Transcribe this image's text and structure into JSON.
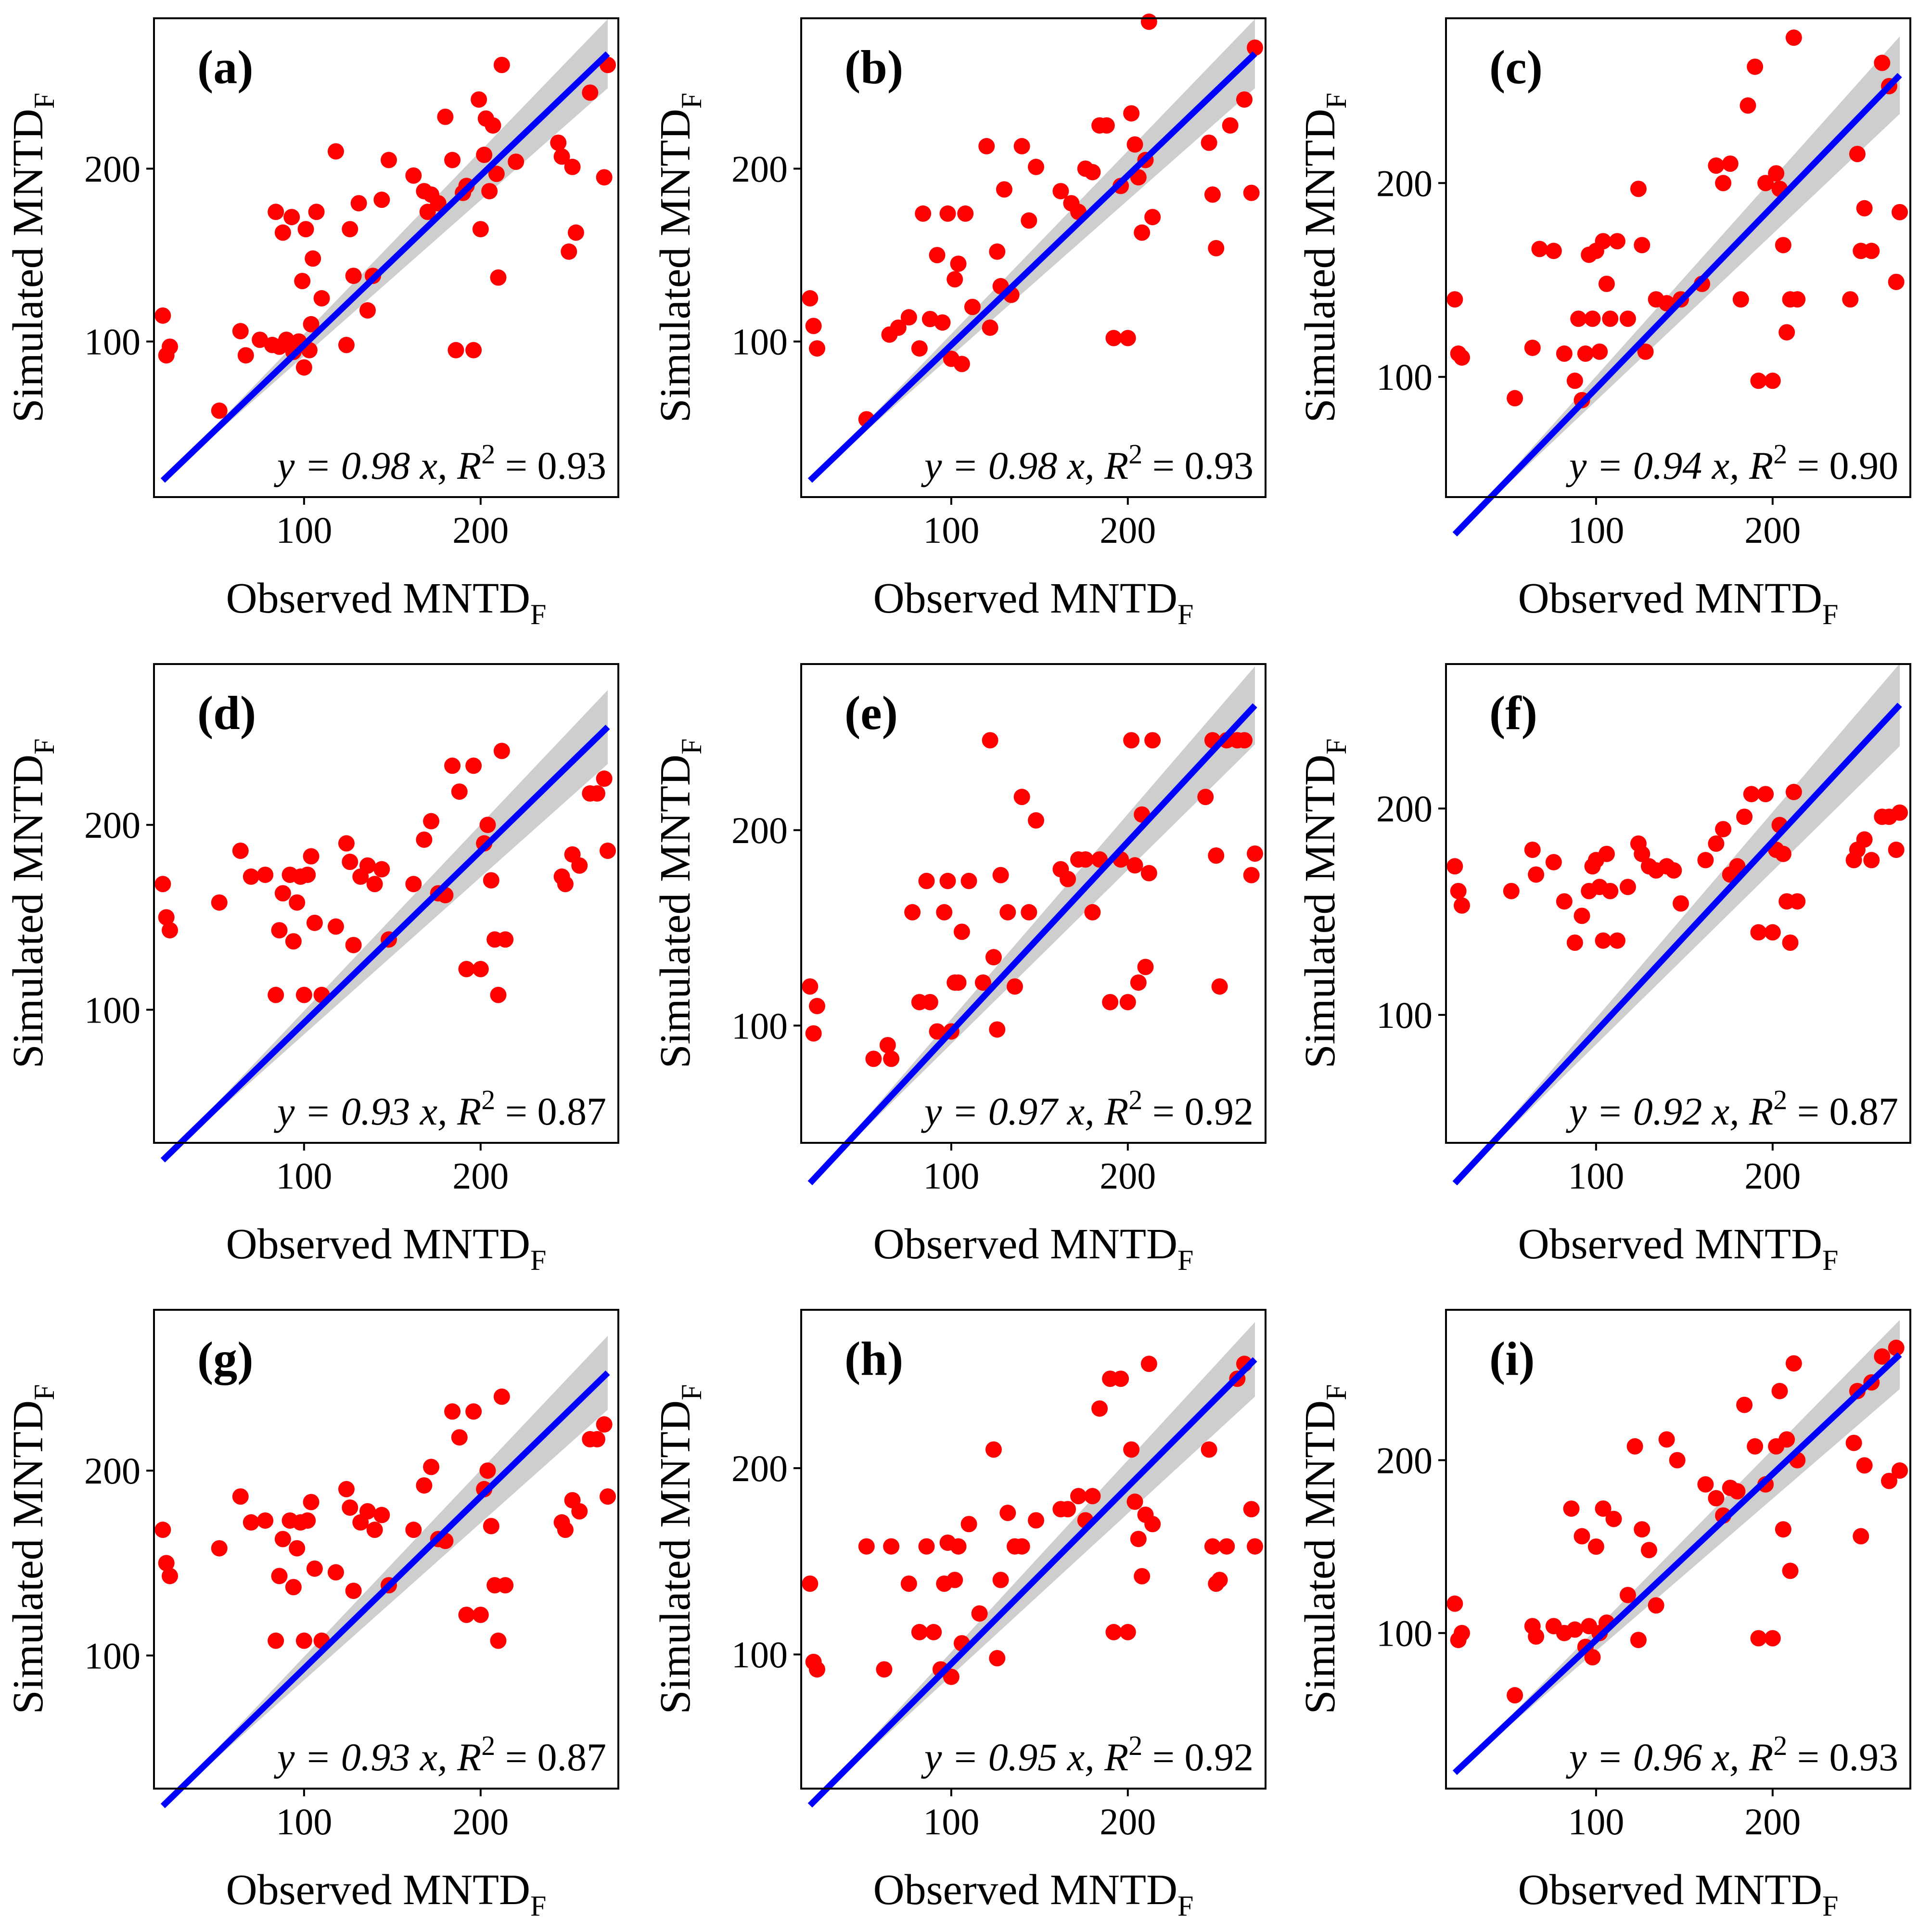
{
  "figure": {
    "colors": {
      "points": "#ff0000",
      "fit_line": "#0000ff",
      "ci_band": "#bdbdbd",
      "axes": "#000000",
      "background": "#ffffff"
    }
  },
  "chart_data": [
    {
      "panel": "(a)",
      "type": "scatter",
      "xlabel": "Observed MNTD",
      "xlabel_sub": "F",
      "ylabel": "Simulated MNTD",
      "ylabel_sub": "F",
      "xticks": [
        "100",
        "200"
      ],
      "yticks": [
        "100",
        "200"
      ],
      "xlim": [
        15,
        278
      ],
      "ylim": [
        10,
        287
      ],
      "fit": {
        "slope": 0.98,
        "r2": 0.93,
        "x_range": [
          20,
          272
        ]
      },
      "eq_prefix": "y = 0.98 x, ",
      "eq_r": "R",
      "eq_sup": "2",
      "eq_suffix": " = 0.93",
      "x": [
        20,
        22,
        24,
        52,
        64,
        67,
        75,
        82,
        84,
        86,
        88,
        90,
        93,
        94,
        97,
        99,
        100,
        101,
        103,
        104,
        105,
        107,
        110,
        118,
        124,
        126,
        128,
        131,
        136,
        139,
        144,
        148,
        162,
        168,
        170,
        172,
        176,
        180,
        184,
        186,
        190,
        192,
        196,
        199,
        200,
        202,
        203,
        205,
        207,
        209,
        210,
        212,
        220,
        244,
        246,
        250,
        252,
        254,
        262,
        270,
        272
      ],
      "y": [
        115,
        92,
        97,
        60,
        106,
        92,
        101,
        98,
        175,
        97,
        163,
        101,
        172,
        94,
        100,
        135,
        85,
        165,
        95,
        110,
        148,
        175,
        125,
        210,
        98,
        165,
        138,
        180,
        118,
        138,
        182,
        205,
        196,
        187,
        175,
        185,
        180,
        230,
        205,
        95,
        186,
        190,
        95,
        240,
        165,
        208,
        229,
        187,
        225,
        197,
        137,
        260,
        204,
        215,
        207,
        152,
        201,
        163,
        244,
        195,
        260
      ]
    },
    {
      "panel": "(b)",
      "type": "scatter",
      "xlabel": "Observed MNTD",
      "xlabel_sub": "F",
      "ylabel": "Simulated MNTD",
      "ylabel_sub": "F",
      "xticks": [
        "100",
        "200"
      ],
      "yticks": [
        "100",
        "200"
      ],
      "xlim": [
        15,
        278
      ],
      "ylim": [
        10,
        287
      ],
      "fit": {
        "slope": 0.98,
        "r2": 0.93,
        "x_range": [
          20,
          272
        ]
      },
      "eq_prefix": "y = 0.98 x, ",
      "eq_r": "R",
      "eq_sup": "2",
      "eq_suffix": " = 0.93",
      "x": [
        20,
        22,
        24,
        52,
        65,
        70,
        76,
        82,
        84,
        88,
        92,
        95,
        98,
        100,
        102,
        104,
        106,
        108,
        112,
        120,
        122,
        126,
        128,
        130,
        134,
        140,
        144,
        148,
        162,
        168,
        172,
        176,
        180,
        184,
        188,
        192,
        196,
        200,
        202,
        204,
        206,
        208,
        210,
        212,
        214,
        246,
        248,
        250,
        258,
        266,
        270,
        272
      ],
      "y": [
        125,
        109,
        96,
        55,
        104,
        108,
        114,
        96,
        174,
        113,
        150,
        111,
        174,
        90,
        136,
        145,
        87,
        174,
        120,
        213,
        108,
        152,
        132,
        188,
        127,
        213,
        170,
        201,
        187,
        180,
        175,
        200,
        198,
        225,
        225,
        102,
        190,
        102,
        232,
        214,
        195,
        163,
        205,
        285,
        172,
        215,
        185,
        154,
        225,
        240,
        186,
        270
      ]
    },
    {
      "panel": "(c)",
      "type": "scatter",
      "xlabel": "Observed MNTD",
      "xlabel_sub": "F",
      "ylabel": "Simulated MNTD",
      "ylabel_sub": "F",
      "xticks": [
        "100",
        "200"
      ],
      "yticks": [
        "100",
        "200"
      ],
      "xlim": [
        15,
        278
      ],
      "ylim": [
        38,
        285
      ],
      "fit": {
        "slope": 0.94,
        "r2": 0.9,
        "x_range": [
          20,
          272
        ]
      },
      "eq_prefix": "y = 0.94 x, ",
      "eq_r": "R",
      "eq_sup": "2",
      "eq_suffix": " = 0.90",
      "x": [
        20,
        22,
        24,
        54,
        64,
        68,
        76,
        82,
        88,
        90,
        92,
        94,
        96,
        98,
        100,
        102,
        104,
        106,
        108,
        112,
        118,
        124,
        126,
        128,
        134,
        140,
        148,
        160,
        168,
        172,
        176,
        182,
        186,
        190,
        192,
        196,
        200,
        202,
        204,
        206,
        208,
        210,
        212,
        214,
        244,
        248,
        250,
        252,
        256,
        262,
        266,
        270,
        272
      ],
      "y": [
        140,
        112,
        110,
        89,
        115,
        166,
        165,
        112,
        98,
        130,
        88,
        112,
        163,
        130,
        165,
        113,
        170,
        148,
        130,
        170,
        130,
        197,
        168,
        113,
        140,
        138,
        140,
        148,
        209,
        200,
        210,
        140,
        240,
        260,
        98,
        200,
        98,
        205,
        197,
        168,
        123,
        140,
        275,
        140,
        140,
        215,
        165,
        187,
        165,
        262,
        250,
        149,
        185
      ]
    },
    {
      "panel": "(d)",
      "type": "scatter",
      "xlabel": "Observed MNTD",
      "xlabel_sub": "F",
      "ylabel": "Simulated MNTD",
      "ylabel_sub": "F",
      "xticks": [
        "100",
        "200"
      ],
      "yticks": [
        "100",
        "200"
      ],
      "xlim": [
        15,
        278
      ],
      "ylim": [
        28,
        287
      ],
      "fit": {
        "slope": 0.93,
        "r2": 0.87,
        "x_range": [
          20,
          272
        ]
      },
      "eq_prefix": "y = 0.93 x, ",
      "eq_r": "R",
      "eq_sup": "2",
      "eq_suffix": " = 0.87",
      "x": [
        20,
        22,
        24,
        52,
        64,
        70,
        78,
        84,
        86,
        88,
        92,
        94,
        96,
        98,
        100,
        102,
        104,
        106,
        110,
        118,
        124,
        126,
        128,
        132,
        136,
        140,
        144,
        148,
        162,
        168,
        172,
        176,
        180,
        184,
        188,
        192,
        196,
        200,
        202,
        204,
        206,
        208,
        210,
        212,
        214,
        246,
        248,
        252,
        256,
        262,
        266,
        270,
        272
      ],
      "y": [
        168,
        150,
        143,
        158,
        186,
        172,
        173,
        108,
        143,
        163,
        173,
        137,
        158,
        172,
        108,
        173,
        183,
        147,
        108,
        145,
        190,
        180,
        135,
        172,
        178,
        168,
        176,
        138,
        168,
        192,
        202,
        163,
        162,
        232,
        218,
        122,
        232,
        122,
        190,
        200,
        170,
        138,
        108,
        240,
        138,
        172,
        168,
        184,
        178,
        217,
        217,
        225,
        186
      ]
    },
    {
      "panel": "(e)",
      "type": "scatter",
      "xlabel": "Observed MNTD",
      "xlabel_sub": "F",
      "ylabel": "Simulated MNTD",
      "ylabel_sub": "F",
      "xticks": [
        "100",
        "200"
      ],
      "yticks": [
        "100",
        "200"
      ],
      "xlim": [
        15,
        278
      ],
      "ylim": [
        40,
        285
      ],
      "fit": {
        "slope": 0.97,
        "r2": 0.92,
        "x_range": [
          20,
          272
        ]
      },
      "eq_prefix": "y = 0.97 x, ",
      "eq_r": "R",
      "eq_sup": "2",
      "eq_suffix": " = 0.92",
      "x": [
        20,
        22,
        24,
        56,
        64,
        66,
        78,
        82,
        86,
        88,
        92,
        96,
        98,
        100,
        102,
        104,
        106,
        110,
        118,
        122,
        124,
        126,
        128,
        132,
        136,
        140,
        144,
        148,
        162,
        166,
        172,
        176,
        180,
        184,
        190,
        196,
        200,
        202,
        204,
        206,
        208,
        210,
        212,
        214,
        244,
        248,
        250,
        252,
        256,
        262,
        266,
        270,
        272
      ],
      "y": [
        120,
        96,
        110,
        83,
        90,
        83,
        158,
        112,
        174,
        112,
        97,
        158,
        174,
        97,
        122,
        122,
        148,
        174,
        122,
        246,
        135,
        98,
        177,
        158,
        120,
        217,
        158,
        205,
        180,
        175,
        185,
        185,
        158,
        185,
        112,
        185,
        112,
        246,
        182,
        122,
        208,
        130,
        178,
        246,
        217,
        246,
        187,
        120,
        246,
        246,
        246,
        177,
        188
      ]
    },
    {
      "panel": "(f)",
      "type": "scatter",
      "xlabel": "Observed MNTD",
      "xlabel_sub": "F",
      "ylabel": "Simulated MNTD",
      "ylabel_sub": "F",
      "xticks": [
        "100",
        "200"
      ],
      "yticks": [
        "100",
        "200"
      ],
      "xlim": [
        15,
        278
      ],
      "ylim": [
        38,
        270
      ],
      "fit": {
        "slope": 0.92,
        "r2": 0.87,
        "x_range": [
          20,
          272
        ]
      },
      "eq_prefix": "y = 0.92 x, ",
      "eq_r": "R",
      "eq_sup": "2",
      "eq_suffix": " = 0.87",
      "x": [
        20,
        22,
        24,
        52,
        64,
        66,
        76,
        82,
        88,
        92,
        96,
        98,
        100,
        102,
        104,
        106,
        108,
        112,
        118,
        124,
        126,
        130,
        134,
        140,
        144,
        148,
        162,
        168,
        172,
        176,
        180,
        184,
        188,
        192,
        196,
        200,
        202,
        204,
        206,
        208,
        210,
        212,
        214,
        246,
        248,
        252,
        256,
        262,
        266,
        270,
        272
      ],
      "y": [
        172,
        160,
        153,
        160,
        180,
        168,
        174,
        155,
        135,
        148,
        160,
        172,
        175,
        162,
        136,
        178,
        160,
        136,
        162,
        183,
        178,
        172,
        170,
        172,
        170,
        154,
        175,
        183,
        190,
        168,
        172,
        196,
        207,
        140,
        207,
        140,
        180,
        192,
        178,
        155,
        135,
        208,
        155,
        175,
        180,
        185,
        175,
        196,
        196,
        180,
        198
      ]
    },
    {
      "panel": "(g)",
      "type": "scatter",
      "xlabel": "Observed MNTD",
      "xlabel_sub": "F",
      "ylabel": "Simulated MNTD",
      "ylabel_sub": "F",
      "xticks": [
        "100",
        "200"
      ],
      "yticks": [
        "100",
        "200"
      ],
      "xlim": [
        15,
        278
      ],
      "ylim": [
        28,
        287
      ],
      "fit": {
        "slope": 0.93,
        "r2": 0.87,
        "x_range": [
          20,
          272
        ]
      },
      "eq_prefix": "y = 0.93 x, ",
      "eq_r": "R",
      "eq_sup": "2",
      "eq_suffix": " = 0.87",
      "x": [
        20,
        22,
        24,
        52,
        64,
        70,
        78,
        84,
        86,
        88,
        92,
        94,
        96,
        98,
        100,
        102,
        104,
        106,
        110,
        118,
        124,
        126,
        128,
        132,
        136,
        140,
        144,
        148,
        162,
        168,
        172,
        176,
        180,
        184,
        188,
        192,
        196,
        200,
        202,
        204,
        206,
        208,
        210,
        212,
        214,
        246,
        248,
        252,
        256,
        262,
        266,
        270,
        272
      ],
      "y": [
        168,
        150,
        143,
        158,
        186,
        172,
        173,
        108,
        143,
        163,
        173,
        137,
        158,
        172,
        108,
        173,
        183,
        147,
        108,
        145,
        190,
        180,
        135,
        172,
        178,
        168,
        176,
        138,
        168,
        192,
        202,
        163,
        162,
        232,
        218,
        122,
        232,
        122,
        190,
        200,
        170,
        138,
        108,
        240,
        138,
        172,
        168,
        184,
        178,
        217,
        217,
        225,
        186
      ]
    },
    {
      "panel": "(h)",
      "type": "scatter",
      "xlabel": "Observed MNTD",
      "xlabel_sub": "F",
      "ylabel": "Simulated MNTD",
      "ylabel_sub": "F",
      "xticks": [
        "100",
        "200"
      ],
      "yticks": [
        "100",
        "200"
      ],
      "xlim": [
        15,
        278
      ],
      "ylim": [
        28,
        285
      ],
      "fit": {
        "slope": 0.95,
        "r2": 0.92,
        "x_range": [
          20,
          272
        ]
      },
      "eq_prefix": "y = 0.95 x, ",
      "eq_r": "R",
      "eq_sup": "2",
      "eq_suffix": " = 0.92",
      "x": [
        20,
        22,
        24,
        52,
        62,
        66,
        76,
        82,
        86,
        90,
        94,
        96,
        98,
        100,
        102,
        104,
        106,
        110,
        116,
        124,
        126,
        128,
        132,
        136,
        140,
        148,
        162,
        166,
        172,
        176,
        180,
        184,
        190,
        192,
        196,
        200,
        202,
        204,
        206,
        208,
        210,
        212,
        214,
        246,
        248,
        250,
        252,
        256,
        262,
        266,
        270,
        272
      ],
      "y": [
        138,
        96,
        92,
        158,
        92,
        158,
        138,
        112,
        158,
        112,
        92,
        138,
        160,
        88,
        140,
        158,
        106,
        170,
        122,
        210,
        98,
        140,
        176,
        158,
        158,
        172,
        178,
        178,
        185,
        172,
        185,
        232,
        248,
        112,
        248,
        112,
        210,
        182,
        162,
        142,
        175,
        256,
        170,
        210,
        158,
        138,
        140,
        158,
        248,
        256,
        178,
        158
      ]
    },
    {
      "panel": "(i)",
      "type": "scatter",
      "xlabel": "Observed MNTD",
      "xlabel_sub": "F",
      "ylabel": "Simulated MNTD",
      "ylabel_sub": "F",
      "xticks": [
        "100",
        "200"
      ],
      "yticks": [
        "100",
        "200"
      ],
      "xlim": [
        15,
        278
      ],
      "ylim": [
        10,
        287
      ],
      "fit": {
        "slope": 0.96,
        "r2": 0.93,
        "x_range": [
          20,
          272
        ]
      },
      "eq_prefix": "y = 0.96 x, ",
      "eq_r": "R",
      "eq_sup": "2",
      "eq_suffix": " = 0.93",
      "x": [
        20,
        22,
        24,
        54,
        64,
        66,
        76,
        82,
        86,
        88,
        92,
        94,
        96,
        98,
        100,
        102,
        104,
        106,
        110,
        118,
        122,
        124,
        126,
        130,
        134,
        140,
        146,
        162,
        168,
        172,
        176,
        180,
        184,
        190,
        192,
        196,
        200,
        202,
        204,
        206,
        208,
        210,
        212,
        214,
        246,
        248,
        250,
        252,
        256,
        262,
        266,
        270,
        272
      ],
      "y": [
        117,
        96,
        100,
        64,
        104,
        98,
        104,
        100,
        172,
        102,
        156,
        92,
        104,
        86,
        150,
        100,
        172,
        106,
        166,
        122,
        208,
        96,
        160,
        148,
        116,
        212,
        200,
        186,
        178,
        168,
        184,
        182,
        232,
        208,
        97,
        186,
        97,
        208,
        240,
        160,
        212,
        136,
        256,
        200,
        210,
        240,
        156,
        197,
        245,
        260,
        188,
        265,
        194
      ]
    }
  ]
}
